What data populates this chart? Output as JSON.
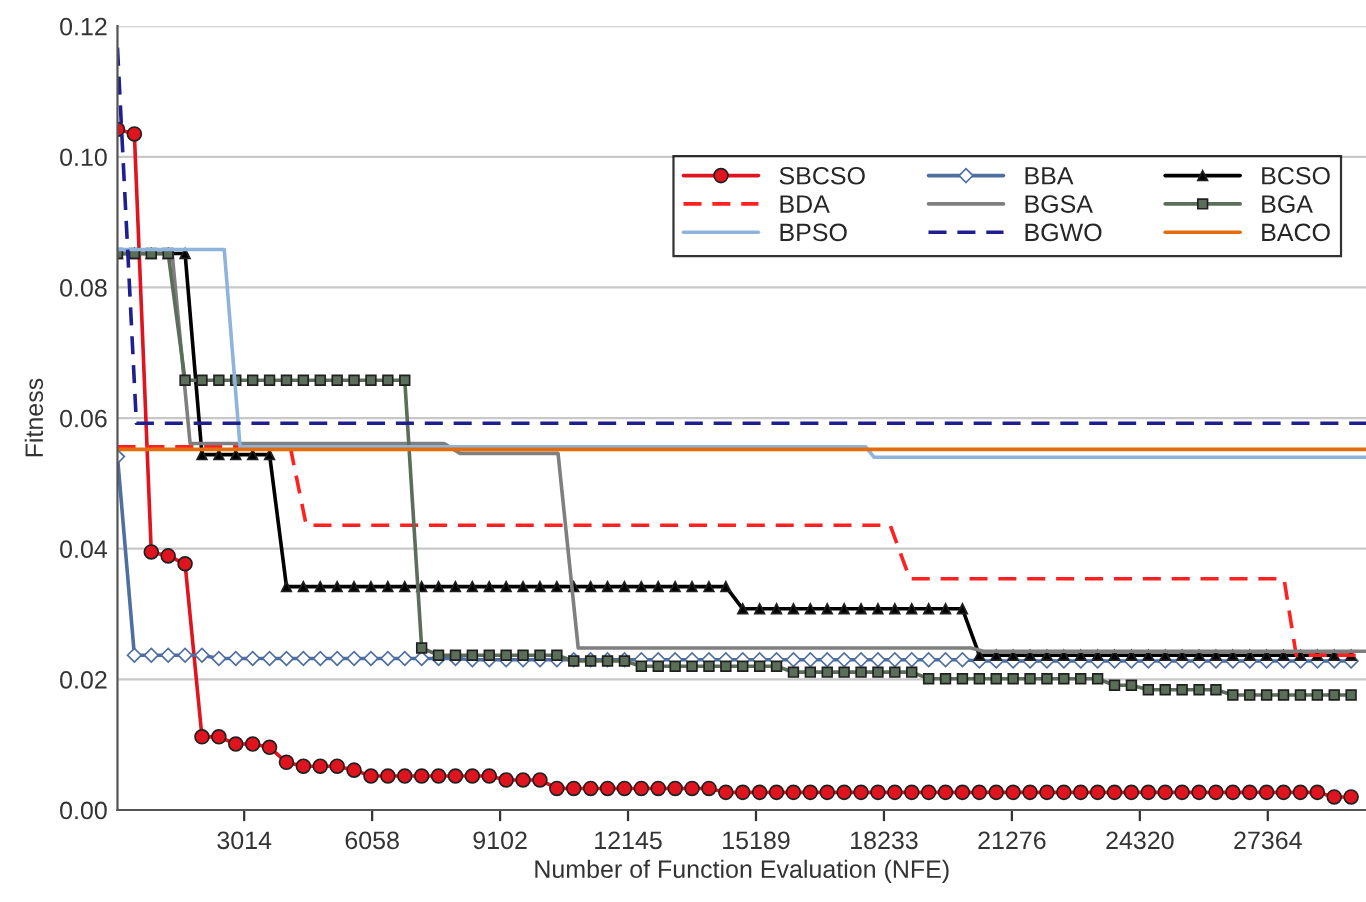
{
  "chart_data": {
    "type": "line",
    "xlabel": "Number of Function Evaluation (NFE)",
    "ylabel": "Fitness",
    "x": [
      0,
      402,
      804,
      1206,
      1608,
      2010,
      2412,
      2814,
      3216,
      3618,
      4020,
      4422,
      4824,
      5226,
      5628,
      6030,
      6432,
      6834,
      7236,
      7638,
      8040,
      8442,
      8844,
      9246,
      9648,
      10050,
      10452,
      10854,
      11256,
      11658,
      12060,
      12462,
      12864,
      13266,
      13668,
      14070,
      14472,
      14874,
      15276,
      15678,
      16080,
      16482,
      16884,
      17286,
      17688,
      18090,
      18492,
      18894,
      19296,
      19698,
      20100,
      20502,
      20904,
      21306,
      21708,
      22110,
      22512,
      22914,
      23316,
      23718,
      24120,
      24522,
      24924,
      25326,
      25728,
      26130,
      26532,
      26934,
      27336,
      27738,
      28140,
      28542,
      28944,
      29346
    ],
    "xlim": [
      0,
      29700
    ],
    "xticks": [
      3014,
      6058,
      9102,
      12145,
      15189,
      18233,
      21276,
      24320,
      27364
    ],
    "ylim": [
      0,
      0.12
    ],
    "yticks": [
      {
        "value": 0,
        "label": "0.00"
      },
      {
        "value": 0.02,
        "label": "0.02"
      },
      {
        "value": 0.04,
        "label": "0.04"
      },
      {
        "value": 0.06,
        "label": "0.06"
      },
      {
        "value": 0.08,
        "label": "0.08"
      },
      {
        "value": 0.1,
        "label": "0.10"
      },
      {
        "value": 0.12,
        "label": "0.12"
      }
    ],
    "grid": "y",
    "legend": "top right",
    "series": [
      {
        "name": "SBCSO",
        "color": "#e0141e",
        "marker": "circle",
        "line_style": "solid",
        "values": [
          0.1042,
          0.1035,
          0.0395,
          0.0389,
          0.0377,
          0.0112,
          0.0112,
          0.0101,
          0.0101,
          0.0096,
          0.0073,
          0.0067,
          0.0067,
          0.0067,
          0.0061,
          0.0052,
          0.0052,
          0.0052,
          0.0052,
          0.0052,
          0.0052,
          0.0052,
          0.0052,
          0.0046,
          0.0046,
          0.0046,
          0.0033,
          0.0033,
          0.0033,
          0.0033,
          0.0033,
          0.0033,
          0.0033,
          0.0033,
          0.0033,
          0.0033,
          0.0027,
          0.0027,
          0.0027,
          0.0027,
          0.0027,
          0.0027,
          0.0027,
          0.0027,
          0.0027,
          0.0027,
          0.0027,
          0.0027,
          0.0027,
          0.0027,
          0.0027,
          0.0027,
          0.0027,
          0.0027,
          0.0027,
          0.0027,
          0.0027,
          0.0027,
          0.0027,
          0.0027,
          0.0027,
          0.0027,
          0.0027,
          0.0027,
          0.0027,
          0.0027,
          0.0027,
          0.0027,
          0.0027,
          0.0027,
          0.0027,
          0.0027,
          0.002,
          0.002
        ]
      },
      {
        "name": "BBA",
        "color": "#4f6fa0",
        "marker": "diamond",
        "line_style": "solid",
        "values": [
          0.0541,
          0.0237,
          0.0237,
          0.0237,
          0.0237,
          0.0237,
          0.0232,
          0.0232,
          0.0232,
          0.0232,
          0.0232,
          0.0232,
          0.0232,
          0.0232,
          0.0232,
          0.0232,
          0.0232,
          0.0232,
          0.0232,
          0.0232,
          0.0232,
          0.023,
          0.023,
          0.023,
          0.023,
          0.023,
          0.023,
          0.023,
          0.023,
          0.023,
          0.023,
          0.023,
          0.023,
          0.023,
          0.023,
          0.023,
          0.023,
          0.023,
          0.023,
          0.023,
          0.023,
          0.023,
          0.023,
          0.023,
          0.023,
          0.023,
          0.023,
          0.023,
          0.023,
          0.023,
          0.023,
          0.0228,
          0.0228,
          0.0228,
          0.0228,
          0.0228,
          0.0228,
          0.0228,
          0.0228,
          0.0228,
          0.0228,
          0.0228,
          0.0228,
          0.0228,
          0.0228,
          0.0228,
          0.0228,
          0.0228,
          0.0228,
          0.0228,
          0.0228,
          0.0228,
          0.0228,
          0.0228
        ]
      },
      {
        "name": "BCSO",
        "color": "#000000",
        "marker": "triangle",
        "line_style": "solid",
        "values": [
          0.0852,
          0.0852,
          0.0852,
          0.0852,
          0.0852,
          0.0544,
          0.0544,
          0.0544,
          0.0544,
          0.0544,
          0.0342,
          0.0342,
          0.0342,
          0.0342,
          0.0342,
          0.0342,
          0.0342,
          0.0342,
          0.0342,
          0.0342,
          0.0342,
          0.0342,
          0.0342,
          0.0342,
          0.0342,
          0.0342,
          0.0342,
          0.0342,
          0.0342,
          0.0342,
          0.0342,
          0.0342,
          0.0342,
          0.0342,
          0.0342,
          0.0342,
          0.0342,
          0.0308,
          0.0308,
          0.0308,
          0.0308,
          0.0308,
          0.0308,
          0.0308,
          0.0308,
          0.0308,
          0.0308,
          0.0308,
          0.0308,
          0.0308,
          0.0308,
          0.0237,
          0.0237,
          0.0237,
          0.0237,
          0.0237,
          0.0237,
          0.0237,
          0.0237,
          0.0237,
          0.0237,
          0.0237,
          0.0237,
          0.0237,
          0.0237,
          0.0237,
          0.0237,
          0.0237,
          0.0237,
          0.0237,
          0.0237,
          0.0237,
          0.0237,
          0.0237
        ]
      },
      {
        "name": "BDA",
        "color": "#ff2020",
        "marker": "none",
        "line_style": "dashed",
        "x": [
          0,
          4110,
          4490,
          18380,
          18850,
          27750,
          28040,
          29700
        ],
        "values": [
          0.0556,
          0.0556,
          0.0436,
          0.0436,
          0.0354,
          0.0354,
          0.0237,
          0.0237
        ]
      },
      {
        "name": "BGSA",
        "color": "#7f7f7f",
        "marker": "none",
        "line_style": "solid",
        "x": [
          0,
          1300,
          1728,
          7770,
          8150,
          10480,
          10960,
          20300,
          20600,
          29700
        ],
        "values": [
          0.0852,
          0.0852,
          0.0561,
          0.0561,
          0.0546,
          0.0546,
          0.0248,
          0.0248,
          0.0243,
          0.0243
        ]
      },
      {
        "name": "BGA",
        "color": "#5a6e5a",
        "marker": "square",
        "line_style": "solid",
        "values": [
          0.0852,
          0.0852,
          0.0852,
          0.0852,
          0.0658,
          0.0658,
          0.0658,
          0.0658,
          0.0658,
          0.0658,
          0.0658,
          0.0658,
          0.0658,
          0.0658,
          0.0658,
          0.0658,
          0.0658,
          0.0658,
          0.0248,
          0.0237,
          0.0237,
          0.0237,
          0.0237,
          0.0237,
          0.0237,
          0.0237,
          0.0237,
          0.0228,
          0.0228,
          0.0228,
          0.0228,
          0.022,
          0.022,
          0.022,
          0.022,
          0.022,
          0.022,
          0.022,
          0.022,
          0.022,
          0.0211,
          0.0211,
          0.0211,
          0.0211,
          0.0211,
          0.0211,
          0.0211,
          0.0211,
          0.0201,
          0.0201,
          0.0201,
          0.0201,
          0.0201,
          0.0201,
          0.0201,
          0.0201,
          0.0201,
          0.0201,
          0.0201,
          0.0191,
          0.0191,
          0.0184,
          0.0184,
          0.0184,
          0.0184,
          0.0184,
          0.0176,
          0.0176,
          0.0176,
          0.0176,
          0.0176,
          0.0176,
          0.0176,
          0.0176
        ]
      },
      {
        "name": "BPSO",
        "color": "#8fb4dc",
        "marker": "none",
        "line_style": "solid",
        "x": [
          0,
          2540,
          2916,
          17800,
          18000,
          29700
        ],
        "values": [
          0.0858,
          0.0858,
          0.0556,
          0.0556,
          0.054,
          0.054
        ]
      },
      {
        "name": "BGWO",
        "color": "#1f1f8f",
        "marker": "none",
        "line_style": "dashed",
        "x": [
          0,
          450,
          29700
        ],
        "values": [
          0.1167,
          0.0592,
          0.0592
        ]
      },
      {
        "name": "BACO",
        "color": "#e46c0a",
        "marker": "none",
        "line_style": "solid",
        "x": [
          0,
          29700
        ],
        "values": [
          0.0552,
          0.0552
        ]
      }
    ]
  }
}
